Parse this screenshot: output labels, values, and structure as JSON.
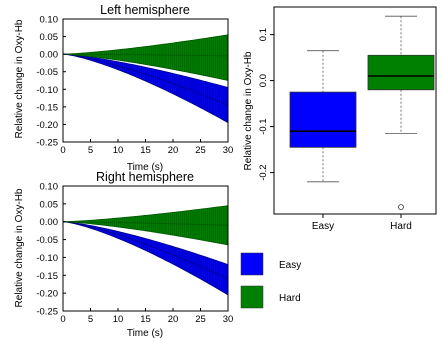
{
  "colors": {
    "easy": "#0000ff",
    "easy_edge": "#00008b",
    "hard": "#008000",
    "hard_edge": "#005a00",
    "whisker": "#555555"
  },
  "chart_data": [
    {
      "type": "area",
      "title": "Left hemisphere",
      "xlabel": "Time (s)",
      "ylabel": "Relative change in Oxy-Hb",
      "xlim": [
        0,
        30
      ],
      "ylim": [
        -0.25,
        0.1
      ],
      "xticks": [
        "0",
        "5",
        "10",
        "15",
        "20",
        "25",
        "30"
      ],
      "yticks": [
        "0.10",
        "0.05",
        "0.00",
        "-0.05",
        "-0.10",
        "-0.15",
        "-0.20",
        "-0.25"
      ],
      "series": [
        {
          "name": "Easy",
          "color": "#0000ff",
          "mean_end": -0.145,
          "upper_end": -0.095,
          "lower_end": -0.195
        },
        {
          "name": "Hard",
          "color": "#008000",
          "mean_end": -0.005,
          "upper_end": 0.055,
          "lower_end": -0.075
        }
      ]
    },
    {
      "type": "area",
      "title": "Right hemisphere",
      "xlabel": "Time (s)",
      "ylabel": "Relative change in Oxy-Hb",
      "xlim": [
        0,
        30
      ],
      "ylim": [
        -0.25,
        0.1
      ],
      "xticks": [
        "0",
        "5",
        "10",
        "15",
        "20",
        "25",
        "30"
      ],
      "yticks": [
        "0.10",
        "0.05",
        "0.00",
        "-0.05",
        "-0.10",
        "-0.15",
        "-0.20",
        "-0.25"
      ],
      "series": [
        {
          "name": "Easy",
          "color": "#0000ff",
          "mean_end": -0.16,
          "upper_end": -0.12,
          "lower_end": -0.205
        },
        {
          "name": "Hard",
          "color": "#008000",
          "mean_end": -0.01,
          "upper_end": 0.045,
          "lower_end": -0.065
        }
      ]
    },
    {
      "type": "box",
      "ylabel": "Relative change in Oxy-Hb",
      "ylim": [
        -0.29,
        0.16
      ],
      "yticks": [
        "0.1",
        "0.0",
        "-0.1",
        "-0.2"
      ],
      "categories": [
        "Easy",
        "Hard"
      ],
      "boxes": [
        {
          "name": "Easy",
          "whisker_low": -0.22,
          "q1": -0.145,
          "median": -0.11,
          "q3": -0.025,
          "whisker_high": 0.065,
          "outliers": []
        },
        {
          "name": "Hard",
          "whisker_low": -0.115,
          "q1": -0.02,
          "median": 0.01,
          "q3": 0.055,
          "whisker_high": 0.14,
          "outliers": [
            -0.275
          ]
        }
      ]
    }
  ],
  "legend": {
    "items": [
      {
        "label": "Easy",
        "color": "#0000ff"
      },
      {
        "label": "Hard",
        "color": "#008000"
      }
    ]
  }
}
